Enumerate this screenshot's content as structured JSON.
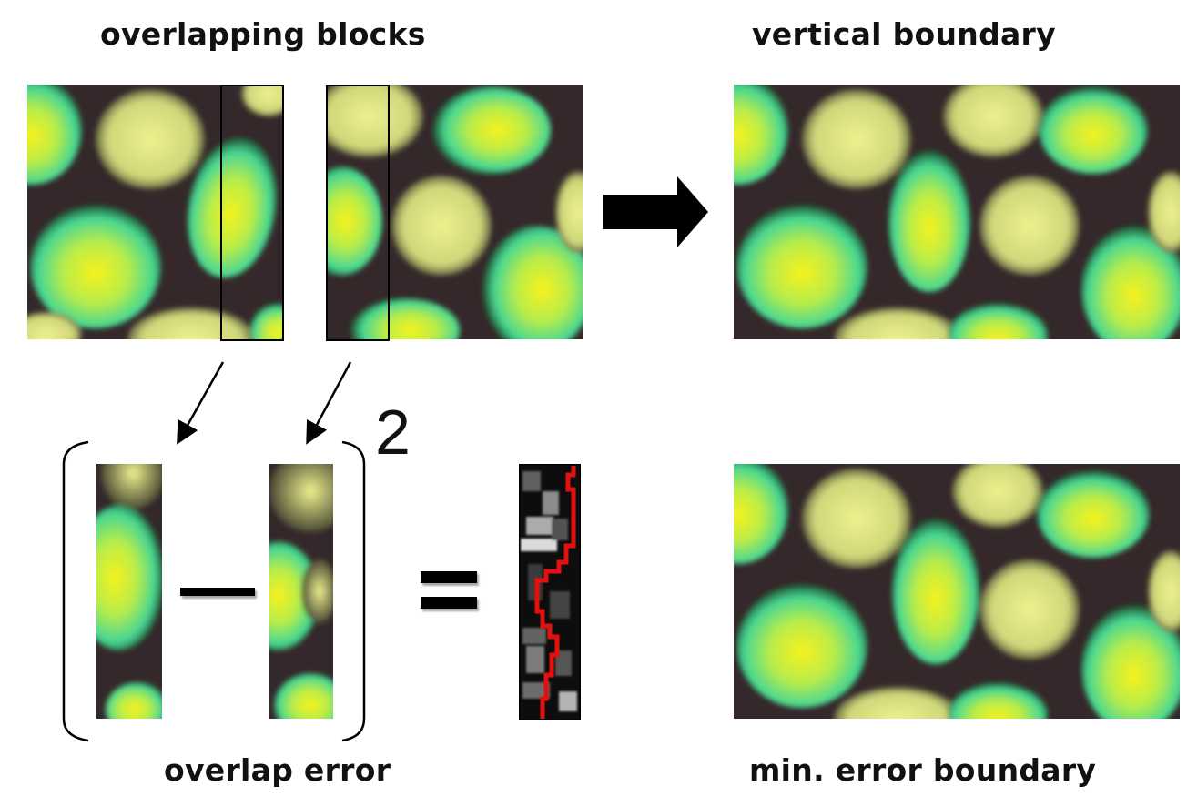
{
  "labels": {
    "overlapping_blocks": "overlapping blocks",
    "vertical_boundary": "vertical boundary",
    "overlap_error": "overlap error",
    "min_error_boundary": "min. error boundary"
  },
  "formula": {
    "exponent": "2"
  },
  "icons": {
    "arrow": "right-arrow-icon",
    "minus": "minus-sign-icon",
    "equals": "equals-sign-icon"
  },
  "colors": {
    "cell_center": "#f4f026",
    "cell_edge": "#45d79a",
    "cell_pale": "#e7ea92",
    "cell_outline": "#1d3a22",
    "background_dark": "#3a2b2b",
    "cut_path": "#e41010"
  }
}
